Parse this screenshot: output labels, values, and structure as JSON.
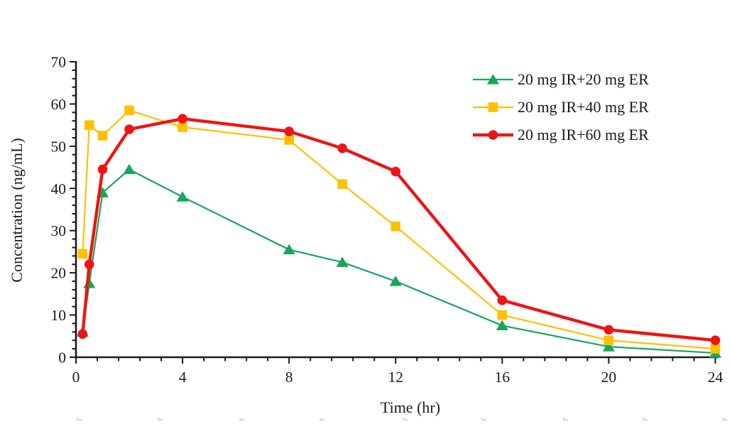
{
  "page": {
    "background": "#ffffff",
    "text_color": "#1b1b1b",
    "axis_color": "#1a1a1a"
  },
  "chart_data": {
    "type": "line",
    "title": "",
    "xlabel": "Time (hr)",
    "ylabel": "Concentration (ng/mL)",
    "xlim": [
      0,
      24
    ],
    "ylim": [
      0,
      70
    ],
    "grid": false,
    "legend_position": "inside-upper-right",
    "x_major_ticks": [
      0,
      4,
      8,
      12,
      16,
      20,
      24
    ],
    "x_minor_step": 0.8,
    "y_major_ticks": [
      0,
      10,
      20,
      30,
      40,
      50,
      60,
      70
    ],
    "y_minor_step": 2,
    "x": [
      0.25,
      0.5,
      1,
      2,
      4,
      8,
      10,
      12,
      16,
      20,
      24
    ],
    "series": [
      {
        "name": "20 mg IR+20 mg ER",
        "color": "#17A65B",
        "marker": "triangle",
        "line_width": 2.2,
        "values": [
          6,
          17.5,
          39,
          44.5,
          38,
          25.5,
          22.5,
          18,
          7.5,
          2.5,
          1
        ]
      },
      {
        "name": "20 mg IR+40 mg ER",
        "color": "#FFC000",
        "marker": "square",
        "line_width": 2.2,
        "values": [
          24.5,
          55,
          52.5,
          58.5,
          54.5,
          51.5,
          41,
          31,
          10,
          4,
          2
        ]
      },
      {
        "name": "20 mg IR+60 mg ER",
        "color": "#EC1515",
        "marker": "circle",
        "line_width": 4.4,
        "values": [
          5.5,
          22,
          44.5,
          54,
          56.5,
          53.5,
          49.5,
          44,
          13.5,
          6.5,
          4
        ]
      }
    ],
    "artifact_marks": {
      "color": "#d9d9d9",
      "y": 591,
      "x_positions": [
        108,
        222,
        337,
        450,
        567,
        678,
        793,
        905,
        1017
      ]
    }
  }
}
